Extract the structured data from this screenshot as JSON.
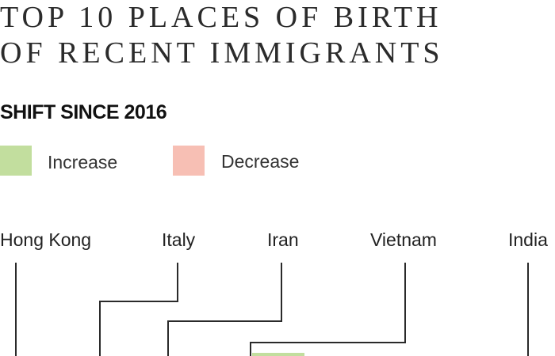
{
  "title": {
    "line1": "TOP 10 PLACES OF BIRTH",
    "line2": "OF RECENT IMMIGRANTS"
  },
  "subtitle": "SHIFT SINCE 2016",
  "legend": {
    "increase": {
      "label": "Increase",
      "color": "#c2de9e"
    },
    "decrease": {
      "label": "Decrease",
      "color": "#f7bfb4"
    }
  },
  "countries": [
    "Hong Kong",
    "Italy",
    "Iran",
    "Vietnam",
    "India"
  ],
  "colors": {
    "line": "#2a2a2a",
    "text": "#222222"
  }
}
